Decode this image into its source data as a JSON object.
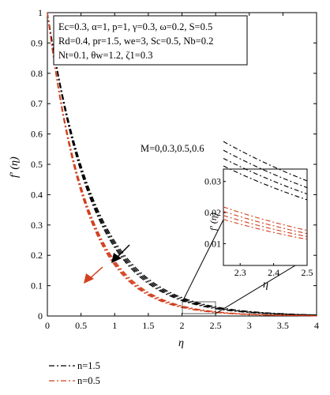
{
  "chart_data": {
    "type": "line",
    "xlabel": "η",
    "ylabel": "f' (η)",
    "xlim": [
      0,
      4
    ],
    "ylim": [
      0,
      1
    ],
    "xticks": [
      "0",
      "0.5",
      "1",
      "1.5",
      "2",
      "2.5",
      "3",
      "3.5",
      "4"
    ],
    "yticks": [
      "0",
      "0.1",
      "0.2",
      "0.3",
      "0.4",
      "0.5",
      "0.6",
      "0.7",
      "0.8",
      "0.9",
      "1"
    ],
    "parameter_lines": [
      "Ec=0.3, α=1, p=1, γ=0.3, ω=0.2, S=0.5",
      "Rd=0.4, pr=1.5, we=3, Sc=0.5, Nb=0.2",
      "Nt=0.1, θw=1.2, ζ1=0.3"
    ],
    "annotation": "M=0,0.3,0.5,0.6",
    "legend": [
      {
        "label": "n=1.5",
        "color": "#000000"
      },
      {
        "label": "n=0.5",
        "color": "#d2401e"
      }
    ],
    "series": [
      {
        "group": "n=1.5",
        "color": "#000000",
        "rate": 1.4
      },
      {
        "group": "n=1.5",
        "color": "#000000",
        "rate": 1.43
      },
      {
        "group": "n=1.5",
        "color": "#000000",
        "rate": 1.46
      },
      {
        "group": "n=1.5",
        "color": "#000000",
        "rate": 1.49
      },
      {
        "group": "n=0.5",
        "color": "#d2401e",
        "rate": 1.7
      },
      {
        "group": "n=0.5",
        "color": "#d2401e",
        "rate": 1.73
      },
      {
        "group": "n=0.5",
        "color": "#d2401e",
        "rate": 1.76
      },
      {
        "group": "n=0.5",
        "color": "#d2401e",
        "rate": 1.79
      }
    ],
    "inset": {
      "xlim": [
        2.25,
        2.5
      ],
      "ylim": [
        0.003,
        0.034
      ],
      "xticks": [
        "2.3",
        "2.4",
        "2.5"
      ],
      "yticks": [
        "0.01",
        "0.02",
        "0.03"
      ],
      "xlabel": "η",
      "ylabel": "f' (η)"
    },
    "colors": {
      "black_series": "#000000",
      "red_series": "#d2401e"
    }
  }
}
